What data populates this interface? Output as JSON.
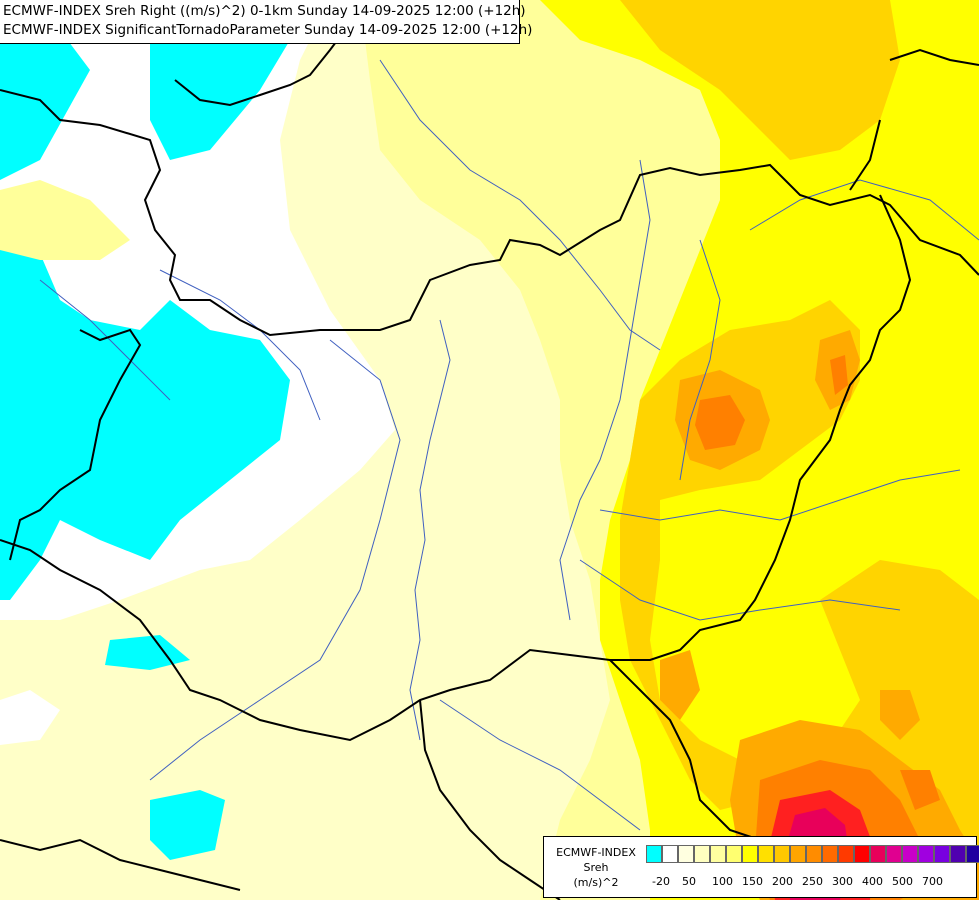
{
  "title": {
    "line1": "ECMWF-INDEX Sreh Right ((m/s)^2) 0-1km Sunday 14-09-2025 12:00 (+12h)",
    "line2": "ECMWF-INDEX SignificantTornadoParameter Sunday 14-09-2025 12:00 (+12h)"
  },
  "legend": {
    "title_line1": "ECMWF-INDEX",
    "title_line2": "Sreh",
    "title_line3": "(m/s)^2",
    "colors": [
      "#00ffff",
      "#ffffff",
      "#ffffe0",
      "#ffffc0",
      "#ffffa0",
      "#ffff70",
      "#ffff00",
      "#ffe000",
      "#ffc800",
      "#ffa500",
      "#ff8c00",
      "#ff6a00",
      "#ff3a00",
      "#ff0000",
      "#e8005a",
      "#e00090",
      "#c800c8",
      "#a000e0",
      "#7800e0",
      "#5000b0",
      "#2000a0",
      "#000080"
    ],
    "labels": [
      "-20",
      "50",
      "100",
      "150",
      "200",
      "250",
      "300",
      "400",
      "500",
      "700"
    ]
  },
  "colors": {
    "cyan": "#00ffff",
    "white": "#ffffff",
    "pale_yellow": "#ffffc8",
    "light_yellow": "#ffff9a",
    "yellow": "#ffff00",
    "gold": "#ffd400",
    "orange": "#ffaa00",
    "dark_orange": "#ff8000",
    "red": "#ff2020",
    "crimson": "#e8005a",
    "border": "#000000",
    "river": "#4060c0"
  }
}
